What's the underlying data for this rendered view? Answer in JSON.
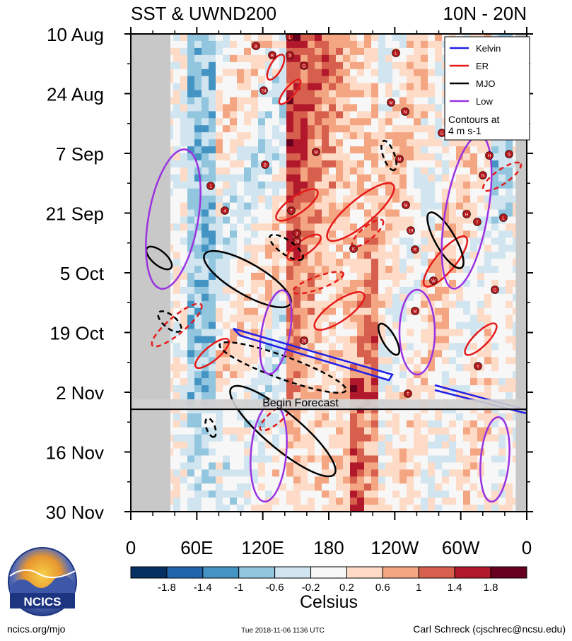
{
  "chart_data": {
    "type": "heatmap",
    "title": "SST & UWND200",
    "subtitle": "10N - 20N",
    "x_ticks": [
      "0",
      "60E",
      "120E",
      "180",
      "120W",
      "60W",
      "0"
    ],
    "y_ticks": [
      "10 Aug",
      "24 Aug",
      "7 Sep",
      "21 Sep",
      "5 Oct",
      "19 Oct",
      "2 Nov",
      "16 Nov",
      "30 Nov"
    ],
    "xlim": [
      0,
      360
    ],
    "ylim_days": [
      "10 Aug",
      "30 Nov"
    ],
    "forecast_start": "6 Nov",
    "forecast_label": "Begin Forecast",
    "legend": {
      "position": "top-right",
      "entries": [
        {
          "name": "Kelvin",
          "color": "#1f1fe6"
        },
        {
          "name": "ER",
          "color": "#e61919"
        },
        {
          "name": "MJO",
          "color": "#000000"
        },
        {
          "name": "Low",
          "color": "#9a32e0"
        }
      ],
      "note_line1": "Contours at",
      "note_line2": "4 m s-1"
    },
    "colorbar": {
      "label": "Celsius",
      "tick_labels": [
        "-1.8",
        "-1.4",
        "-1",
        "-0.6",
        "-0.2",
        "0.2",
        "0.6",
        "1",
        "1.4",
        "1.8"
      ],
      "colors": [
        "#053061",
        "#2166ac",
        "#4393c3",
        "#92c5de",
        "#d1e5f0",
        "#f7f7f7",
        "#fddbc7",
        "#f4a582",
        "#d6604d",
        "#b2182b",
        "#67001f"
      ]
    },
    "land_masks_lon": [
      [
        0,
        36
      ],
      [
        350,
        360
      ]
    ],
    "warm_core_lon": [
      140,
      222
    ],
    "storm_markers": [
      "B",
      "R",
      "S",
      "L",
      "G",
      "24",
      "L",
      "M",
      "N",
      "G",
      "M",
      "B",
      "1",
      "4",
      "T",
      "M",
      "19",
      "R",
      "S",
      "H",
      "H",
      "T",
      "L",
      "K",
      "W",
      "M",
      "T",
      "26",
      "Y",
      "O",
      "N",
      "2",
      "28",
      "M"
    ]
  },
  "footer": {
    "logo_text": "NCICS",
    "site": "ncics.org/mjo",
    "timestamp": "Tue 2018-11-06 1136 UTC",
    "author": "Carl Schreck (cjschrec@ncsu.edu)"
  }
}
